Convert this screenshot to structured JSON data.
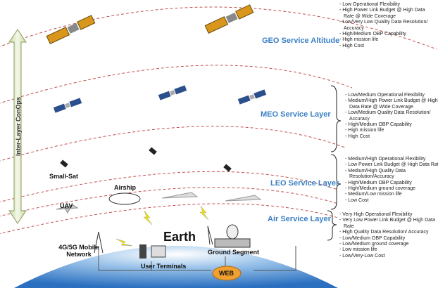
{
  "axis_label": "Inter-Layer ConOps",
  "layers": [
    {
      "name": "GEO Service Altitude",
      "features": [
        "- Low Operational Flexibility",
        "- High Power Link Budget @ High Data Rate @ Wide Coverage",
        "- Low/Very Low Quality Data Resolution/ Accuracy",
        "- High/Medium OBP Capability",
        "- High mission life",
        "- High Cost"
      ]
    },
    {
      "name": "MEO Service Layer",
      "features": [
        "- Low/Medium Operational Flexibility",
        "- Medium/High Power Link Budget @ High Data Rate @ Wide Coverage",
        "- Low/Medium Quality Data Resolution/ Accuracy",
        "- High/Medium OBP Capability",
        "- High mission life",
        "- High Cost"
      ]
    },
    {
      "name": "LEO Service Layer",
      "features": [
        "- Medium/High Operational Flexibility",
        "- Low Power Link Budget @ High Data Rate",
        "- Medium/High Quality Data Resolution/Accuracy",
        "- High/Medium OBP Capability",
        "- High/Medium ground coverage",
        "- Medium/Low mission life",
        "- Low Cost"
      ]
    },
    {
      "name": "Air Service Layer",
      "features": [
        "- Very High Operational Flexibility",
        "- Very Low Power Link Budget @ High Data Rate",
        "- High Quality Data Resolution/ Accuracy",
        "- Low/Medium OBP Capability",
        "- Low/Medium ground coverage",
        "- Low mission life",
        "- Low/Very-Low Cost"
      ]
    }
  ],
  "labels": {
    "small_sat": "Small-Sat",
    "airship": "Airship",
    "uav": "UAV",
    "mobile_network": "4G/5G Mobile Network",
    "user_terminals": "User Terminals",
    "earth": "Earth",
    "ground_segment": "Ground Segment",
    "web": "WEB"
  }
}
